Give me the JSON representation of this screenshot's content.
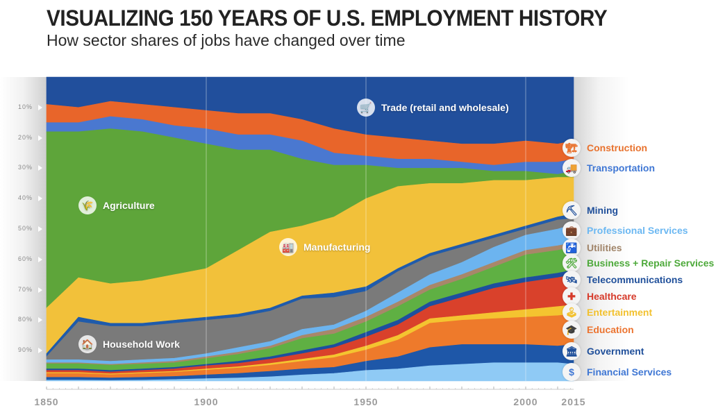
{
  "header": {
    "title": "VISUALIZING 150 YEARS OF U.S. EMPLOYMENT HISTORY",
    "subtitle": "How sector shares of jobs have changed over time"
  },
  "chart_data": {
    "type": "area",
    "stacked": true,
    "normalized": true,
    "title": "VISUALIZING 150 YEARS OF U.S. EMPLOYMENT HISTORY",
    "subtitle": "How sector shares of jobs have changed over time",
    "xlabel": "",
    "ylabel": "",
    "x": [
      1850,
      1860,
      1870,
      1880,
      1890,
      1900,
      1910,
      1920,
      1930,
      1940,
      1950,
      1960,
      1970,
      1980,
      1990,
      2000,
      2010,
      2015
    ],
    "x_ticks": [
      "1850",
      "1900",
      "1950",
      "2000",
      "2015"
    ],
    "y_ticks": [
      "10%",
      "20%",
      "30%",
      "40%",
      "50%",
      "60%",
      "70%",
      "80%",
      "90%"
    ],
    "ylim": [
      0,
      100
    ],
    "y_direction": "top-down cumulative share (%)",
    "legend_position": "right",
    "series": [
      {
        "name": "Trade (retail and wholesale)",
        "color": "#214f9c",
        "icon": "cart-icon",
        "values": [
          9,
          10,
          8,
          9,
          10,
          11,
          12,
          12,
          14,
          17,
          19,
          20,
          21,
          22,
          22,
          21,
          22,
          21
        ]
      },
      {
        "name": "Construction",
        "color": "#e8652a",
        "icon": "crane-icon",
        "values": [
          6,
          5,
          5,
          5,
          6,
          6,
          7,
          7,
          7,
          8,
          7,
          7,
          6,
          6,
          7,
          7,
          6,
          6
        ]
      },
      {
        "name": "Transportation",
        "color": "#4a78d0",
        "icon": "truck-icon",
        "values": [
          3,
          3,
          4,
          4,
          4,
          5,
          5,
          5,
          6,
          4,
          3,
          3,
          3,
          2,
          2,
          3,
          4,
          4
        ]
      },
      {
        "name": "Agriculture",
        "color": "#5ea53a",
        "icon": "wheat-icon",
        "values": [
          58,
          48,
          51,
          49,
          45,
          41,
          33,
          27,
          22,
          17,
          11,
          6,
          5,
          5,
          3,
          3,
          1,
          2
        ]
      },
      {
        "name": "Manufacturing",
        "color": "#f2c13a",
        "icon": "factory-icon",
        "values": [
          15,
          13,
          13,
          14,
          15,
          16,
          21,
          25,
          23,
          25,
          29,
          27,
          23,
          20,
          18,
          15,
          13,
          12
        ]
      },
      {
        "name": "Mining",
        "color": "#1f5bab",
        "icon": "pickaxe-icon",
        "values": [
          1,
          1.5,
          1,
          1,
          1,
          1,
          1,
          1,
          1,
          1.5,
          1.5,
          1,
          1,
          1,
          1,
          1,
          1,
          1.5
        ]
      },
      {
        "name": "Household Work",
        "color": "#7a7a7a",
        "icon": "house-icon",
        "values": [
          1,
          12.5,
          11.5,
          11,
          11.5,
          11,
          10,
          10,
          10,
          9,
          6.5,
          7,
          6,
          5,
          3,
          2,
          3,
          2
        ]
      },
      {
        "name": "Professional Services",
        "color": "#6cb4ef",
        "icon": "briefcase-icon",
        "values": [
          1,
          1,
          1,
          1,
          1,
          1,
          1.5,
          1.5,
          2,
          1.5,
          2,
          3,
          3.5,
          4,
          5,
          5,
          5.5,
          6
        ]
      },
      {
        "name": "Utilities",
        "color": "#a8876a",
        "icon": "faucet-icon",
        "values": [
          0.3,
          0.3,
          0.3,
          0.4,
          0.5,
          0.6,
          0.7,
          0.8,
          1,
          1.5,
          1.5,
          1.5,
          1.5,
          1.5,
          1.5,
          1.5,
          1.5,
          1.5
        ]
      },
      {
        "name": "Business + Repair Services",
        "color": "#5fb043",
        "icon": "tools-icon",
        "values": [
          1.7,
          1.7,
          1.7,
          1.6,
          1.5,
          1.9,
          2.3,
          2.7,
          4,
          3.5,
          3.5,
          4.5,
          4,
          4.5,
          5.5,
          7.5,
          7.5,
          7.5
        ]
      },
      {
        "name": "Telecommunications",
        "color": "#1d4f9e",
        "icon": "satellite-icon",
        "values": [
          0.5,
          0.5,
          0.5,
          0.5,
          0.5,
          0.5,
          0.7,
          0.8,
          1,
          1,
          1.5,
          1.5,
          1.5,
          1.5,
          1.5,
          1.5,
          1.5,
          1.5
        ]
      },
      {
        "name": "Healthcare",
        "color": "#d9412b",
        "icon": "cross-icon",
        "values": [
          0.7,
          0.7,
          0.6,
          0.7,
          0.8,
          1,
          1.1,
          1.4,
          1.8,
          2.4,
          3,
          3.5,
          4,
          6,
          8,
          9,
          9.5,
          10
        ]
      },
      {
        "name": "Entertainment",
        "color": "#f4c430",
        "icon": "joystick-icon",
        "values": [
          0.3,
          0.3,
          0.3,
          0.3,
          0.3,
          0.4,
          0.4,
          0.6,
          0.7,
          0.9,
          1.3,
          1.5,
          1.5,
          1.5,
          2,
          2.5,
          3,
          3
        ]
      },
      {
        "name": "Education",
        "color": "#ee7a2b",
        "icon": "graduation-cap-icon",
        "values": [
          1.3,
          1.3,
          1.1,
          1.3,
          1.4,
          1.6,
          1.8,
          2,
          2.5,
          3.2,
          3.7,
          5.5,
          8,
          8,
          8.5,
          9,
          10,
          10
        ]
      },
      {
        "name": "Government",
        "color": "#1e57a8",
        "icon": "bank-icon",
        "values": [
          0.9,
          0.9,
          0.8,
          0.9,
          1,
          1.2,
          1.5,
          1.8,
          2,
          2,
          3,
          4,
          6,
          6.5,
          6,
          6,
          5.5,
          6.5
        ]
      },
      {
        "name": "Financial Services",
        "color": "#8fcaf5",
        "icon": "money-bag-icon",
        "values": [
          0.3,
          0.3,
          0.2,
          0.3,
          0.5,
          0.8,
          1,
          1.4,
          2,
          2.5,
          3.5,
          4,
          5,
          5.5,
          6,
          6,
          6,
          5.5
        ]
      }
    ]
  },
  "in_chart_labels": {
    "trade": "Trade (retail and wholesale)",
    "agriculture": "Agriculture",
    "manufacturing": "Manufacturing",
    "household": "Household Work"
  },
  "legend": [
    {
      "label": "Construction",
      "color": "#e8722e",
      "icon": "crane-icon",
      "glyph": "🏗"
    },
    {
      "label": "Transportation",
      "color": "#3f77d4",
      "icon": "truck-icon",
      "glyph": "🚚"
    },
    {
      "label": "Mining",
      "color": "#1f4f9a",
      "icon": "pickaxe-icon",
      "glyph": "⛏"
    },
    {
      "label": "Professional Services",
      "color": "#6cb8f2",
      "icon": "briefcase-icon",
      "glyph": "💼"
    },
    {
      "label": "Utilities",
      "color": "#a08469",
      "icon": "faucet-icon",
      "glyph": "🚰"
    },
    {
      "label": "Business + Repair Services",
      "color": "#4da93a",
      "icon": "tools-icon",
      "glyph": "🛠"
    },
    {
      "label": "Telecommunications",
      "color": "#1f4f9a",
      "icon": "satellite-icon",
      "glyph": "🛰"
    },
    {
      "label": "Healthcare",
      "color": "#d63a2a",
      "icon": "cross-icon",
      "glyph": "✚"
    },
    {
      "label": "Entertainment",
      "color": "#f2c12e",
      "icon": "joystick-icon",
      "glyph": "🕹"
    },
    {
      "label": "Education",
      "color": "#ec7430",
      "icon": "graduation-cap-icon",
      "glyph": "🎓"
    },
    {
      "label": "Government",
      "color": "#1f4f9a",
      "icon": "bank-icon",
      "glyph": "🏛"
    },
    {
      "label": "Financial Services",
      "color": "#3f77d4",
      "icon": "money-bag-icon",
      "glyph": "$"
    }
  ]
}
